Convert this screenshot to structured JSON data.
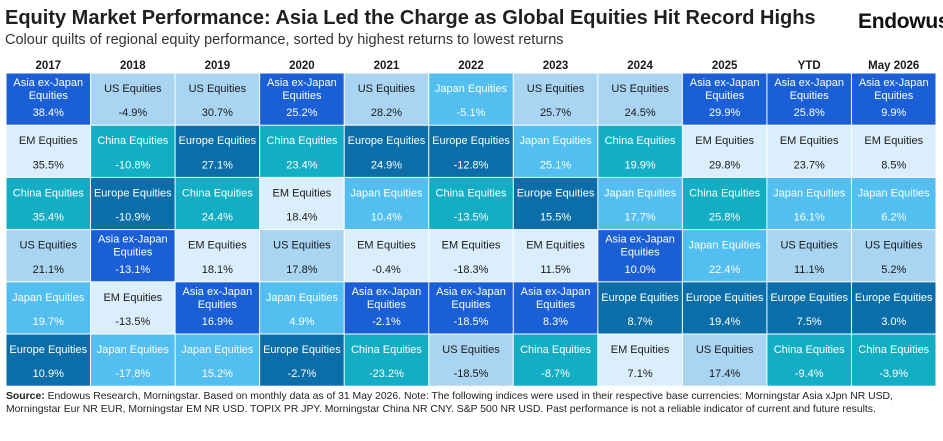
{
  "header": {
    "title": "Equity Market Performance: Asia Led the Charge as Global Equities Hit Record Highs",
    "subtitle": "Colour quilts of regional equity performance, sorted by highest returns to lowest returns",
    "brand": "Endowus",
    "brand_mark": "US"
  },
  "source": {
    "label": "Source:",
    "text": " Endowus Research, Morningstar. Based on monthly data as of 31 May 2026. Note: The following indices were used in their respective base currencies: Morningstar Asia xJpn NR USD, Morningstar Eur NR EUR, Morningstar EM NR USD. TOPIX PR JPY. Morningstar China NR CNY. S&P 500 NR USD. Past performance is not a reliable indicator of current and future results."
  },
  "colors": {
    "Asia ex-Japan Equities": "#1a5fd6",
    "US Equities": "#a9d4f2",
    "Japan Equities": "#52bff0",
    "China Equities": "#14aec4",
    "Europe Equities": "#0b6ea8",
    "EM Equities": "#dbeefb"
  },
  "text_colors": {
    "Asia ex-Japan Equities": "#ffffff",
    "US Equities": "#1a1a1a",
    "Japan Equities": "#ffffff",
    "China Equities": "#ffffff",
    "Europe Equities": "#ffffff",
    "EM Equities": "#1a1a1a"
  },
  "chart_data": {
    "type": "table",
    "title": "Equity Market Performance: Asia Led the Charge as Global Equities Hit Record Highs",
    "columns": [
      "2017",
      "2018",
      "2019",
      "2020",
      "2021",
      "2022",
      "2023",
      "2024",
      "2025",
      "YTD",
      "May 2026"
    ],
    "cells": [
      [
        {
          "name": "Asia ex-Japan Equities",
          "value": "38.4%"
        },
        {
          "name": "EM Equities",
          "value": "35.5%"
        },
        {
          "name": "China Equities",
          "value": "35.4%"
        },
        {
          "name": "US Equities",
          "value": "21.1%"
        },
        {
          "name": "Japan Equities",
          "value": "19.7%"
        },
        {
          "name": "Europe Equities",
          "value": "10.9%"
        }
      ],
      [
        {
          "name": "US Equities",
          "value": "-4.9%"
        },
        {
          "name": "China Equities",
          "value": "-10.8%"
        },
        {
          "name": "Europe Equities",
          "value": "-10.9%"
        },
        {
          "name": "Asia ex-Japan Equities",
          "value": "-13.1%"
        },
        {
          "name": "EM Equities",
          "value": "-13.5%"
        },
        {
          "name": "Japan Equities",
          "value": "-17.8%"
        }
      ],
      [
        {
          "name": "US Equities",
          "value": "30.7%"
        },
        {
          "name": "Europe Equities",
          "value": "27.1%"
        },
        {
          "name": "China Equities",
          "value": "24.4%"
        },
        {
          "name": "EM Equities",
          "value": "18.1%"
        },
        {
          "name": "Asia ex-Japan Equities",
          "value": "16.9%"
        },
        {
          "name": "Japan Equities",
          "value": "15.2%"
        }
      ],
      [
        {
          "name": "Asia ex-Japan Equities",
          "value": "25.2%"
        },
        {
          "name": "China Equities",
          "value": "23.4%"
        },
        {
          "name": "EM Equities",
          "value": "18.4%"
        },
        {
          "name": "US Equities",
          "value": "17.8%"
        },
        {
          "name": "Japan Equities",
          "value": "4.9%"
        },
        {
          "name": "Europe Equities",
          "value": "-2.7%"
        }
      ],
      [
        {
          "name": "US Equities",
          "value": "28.2%"
        },
        {
          "name": "Europe Equities",
          "value": "24.9%"
        },
        {
          "name": "Japan Equities",
          "value": "10.4%"
        },
        {
          "name": "EM Equities",
          "value": "-0.4%"
        },
        {
          "name": "Asia ex-Japan Equities",
          "value": "-2.1%"
        },
        {
          "name": "China Equities",
          "value": "-23.2%"
        }
      ],
      [
        {
          "name": "Japan Equities",
          "value": "-5.1%"
        },
        {
          "name": "Europe Equities",
          "value": "-12.8%"
        },
        {
          "name": "China Equities",
          "value": "-13.5%"
        },
        {
          "name": "EM Equities",
          "value": "-18.3%"
        },
        {
          "name": "Asia ex-Japan Equities",
          "value": "-18.5%"
        },
        {
          "name": "US Equities",
          "value": "-18.5%"
        }
      ],
      [
        {
          "name": "US Equities",
          "value": "25.7%"
        },
        {
          "name": "Japan Equities",
          "value": "25.1%"
        },
        {
          "name": "Europe Equities",
          "value": "15.5%"
        },
        {
          "name": "EM Equities",
          "value": "11.5%"
        },
        {
          "name": "Asia ex-Japan Equities",
          "value": "8.3%"
        },
        {
          "name": "China Equities",
          "value": "-8.7%"
        }
      ],
      [
        {
          "name": "US Equities",
          "value": "24.5%"
        },
        {
          "name": "China Equities",
          "value": "19.9%"
        },
        {
          "name": "Japan Equities",
          "value": "17.7%"
        },
        {
          "name": "Asia ex-Japan Equities",
          "value": "10.0%"
        },
        {
          "name": "Europe Equities",
          "value": "8.7%"
        },
        {
          "name": "EM Equities",
          "value": "7.1%"
        }
      ],
      [
        {
          "name": "Asia ex-Japan Equities",
          "value": "29.9%"
        },
        {
          "name": "EM Equities",
          "value": "29.8%"
        },
        {
          "name": "China Equities",
          "value": "25.8%"
        },
        {
          "name": "Japan Equities",
          "value": "22.4%"
        },
        {
          "name": "Europe Equities",
          "value": "19.4%"
        },
        {
          "name": "US Equities",
          "value": "17.4%"
        }
      ],
      [
        {
          "name": "Asia ex-Japan Equities",
          "value": "25.8%"
        },
        {
          "name": "EM Equities",
          "value": "23.7%"
        },
        {
          "name": "Japan Equities",
          "value": "16.1%"
        },
        {
          "name": "US Equities",
          "value": "11.1%"
        },
        {
          "name": "Europe Equities",
          "value": "7.5%"
        },
        {
          "name": "China Equities",
          "value": "-9.4%"
        }
      ],
      [
        {
          "name": "Asia ex-Japan Equities",
          "value": "9.9%"
        },
        {
          "name": "EM Equities",
          "value": "8.5%"
        },
        {
          "name": "Japan Equities",
          "value": "6.2%"
        },
        {
          "name": "US Equities",
          "value": "5.2%"
        },
        {
          "name": "Europe Equities",
          "value": "3.0%"
        },
        {
          "name": "China Equities",
          "value": "-3.9%"
        }
      ]
    ]
  }
}
